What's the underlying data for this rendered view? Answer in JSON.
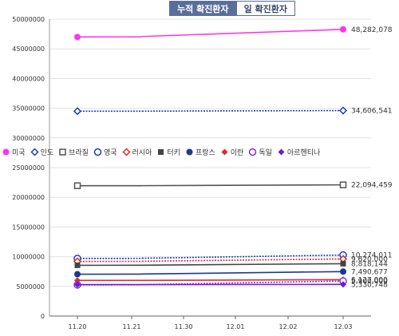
{
  "tabs": [
    {
      "label": "누적 확진환자",
      "active": true
    },
    {
      "label": "일 확진환자",
      "active": false
    }
  ],
  "chart_data": {
    "type": "line",
    "categories": [
      "11.20",
      "11.21",
      "11.30",
      "12.01",
      "12.02",
      "12.03"
    ],
    "ylim": [
      0,
      50000000
    ],
    "yticks": [
      {
        "value": 0,
        "label": "0"
      },
      {
        "value": 5000000,
        "label": "5000000"
      },
      {
        "value": 10000000,
        "label": "10000000"
      },
      {
        "value": 15000000,
        "label": "15000000"
      },
      {
        "value": 20000000,
        "label": "20000000"
      },
      {
        "value": 25000000,
        "label": "25000000"
      },
      {
        "value": 30000000,
        "label": "30000000"
      },
      {
        "value": 35000000,
        "label": "35000000"
      },
      {
        "value": 40000000,
        "label": "40000000"
      },
      {
        "value": 45000000,
        "label": "45000000"
      },
      {
        "value": 50000000,
        "label": "50000000"
      }
    ],
    "grid": true,
    "legend_position": "middle",
    "series": [
      {
        "name": "미국",
        "color": "#ff33ee",
        "marker": "circle-filled",
        "first": 47000000,
        "last": 48282078,
        "label": "48,282,078"
      },
      {
        "name": "인도",
        "color": "#1a3fb8",
        "marker": "diamond-open",
        "first": 34500000,
        "last": 34606541,
        "label": "34,606,541"
      },
      {
        "name": "브라질",
        "color": "#555555",
        "marker": "square-open",
        "first": 21950000,
        "last": 22094459,
        "label": "22,094,459"
      },
      {
        "name": "영국",
        "color": "#1a3fb8",
        "marker": "circle-open",
        "first": 9700000,
        "last": 10274011,
        "label": "10,274,011"
      },
      {
        "name": "러시아",
        "color": "#e02b2b",
        "marker": "diamond-open",
        "first": 9200000,
        "last": 9620000,
        "label": "9,620,000"
      },
      {
        "name": "터키",
        "color": "#444444",
        "marker": "square-filled",
        "first": 8550000,
        "last": 8818144,
        "label": "8,818,144"
      },
      {
        "name": "프랑스",
        "color": "#1a3a8a",
        "marker": "circle-filled",
        "first": 7050000,
        "last": 7490677,
        "label": "7,490,677"
      },
      {
        "name": "이란",
        "color": "#e02b2b",
        "marker": "diamond-filled",
        "first": 6000000,
        "last": 6127000,
        "label": "6,127,000"
      },
      {
        "name": "독일",
        "color": "#8a2be2",
        "marker": "circle-open",
        "first": 5250000,
        "last": 5900000,
        "label": "5,900,000"
      },
      {
        "name": "아르헨티나",
        "color": "#6a1fc9",
        "marker": "diamond-filled",
        "first": 5300000,
        "last": 5330748,
        "label": "5,330,748"
      }
    ]
  }
}
